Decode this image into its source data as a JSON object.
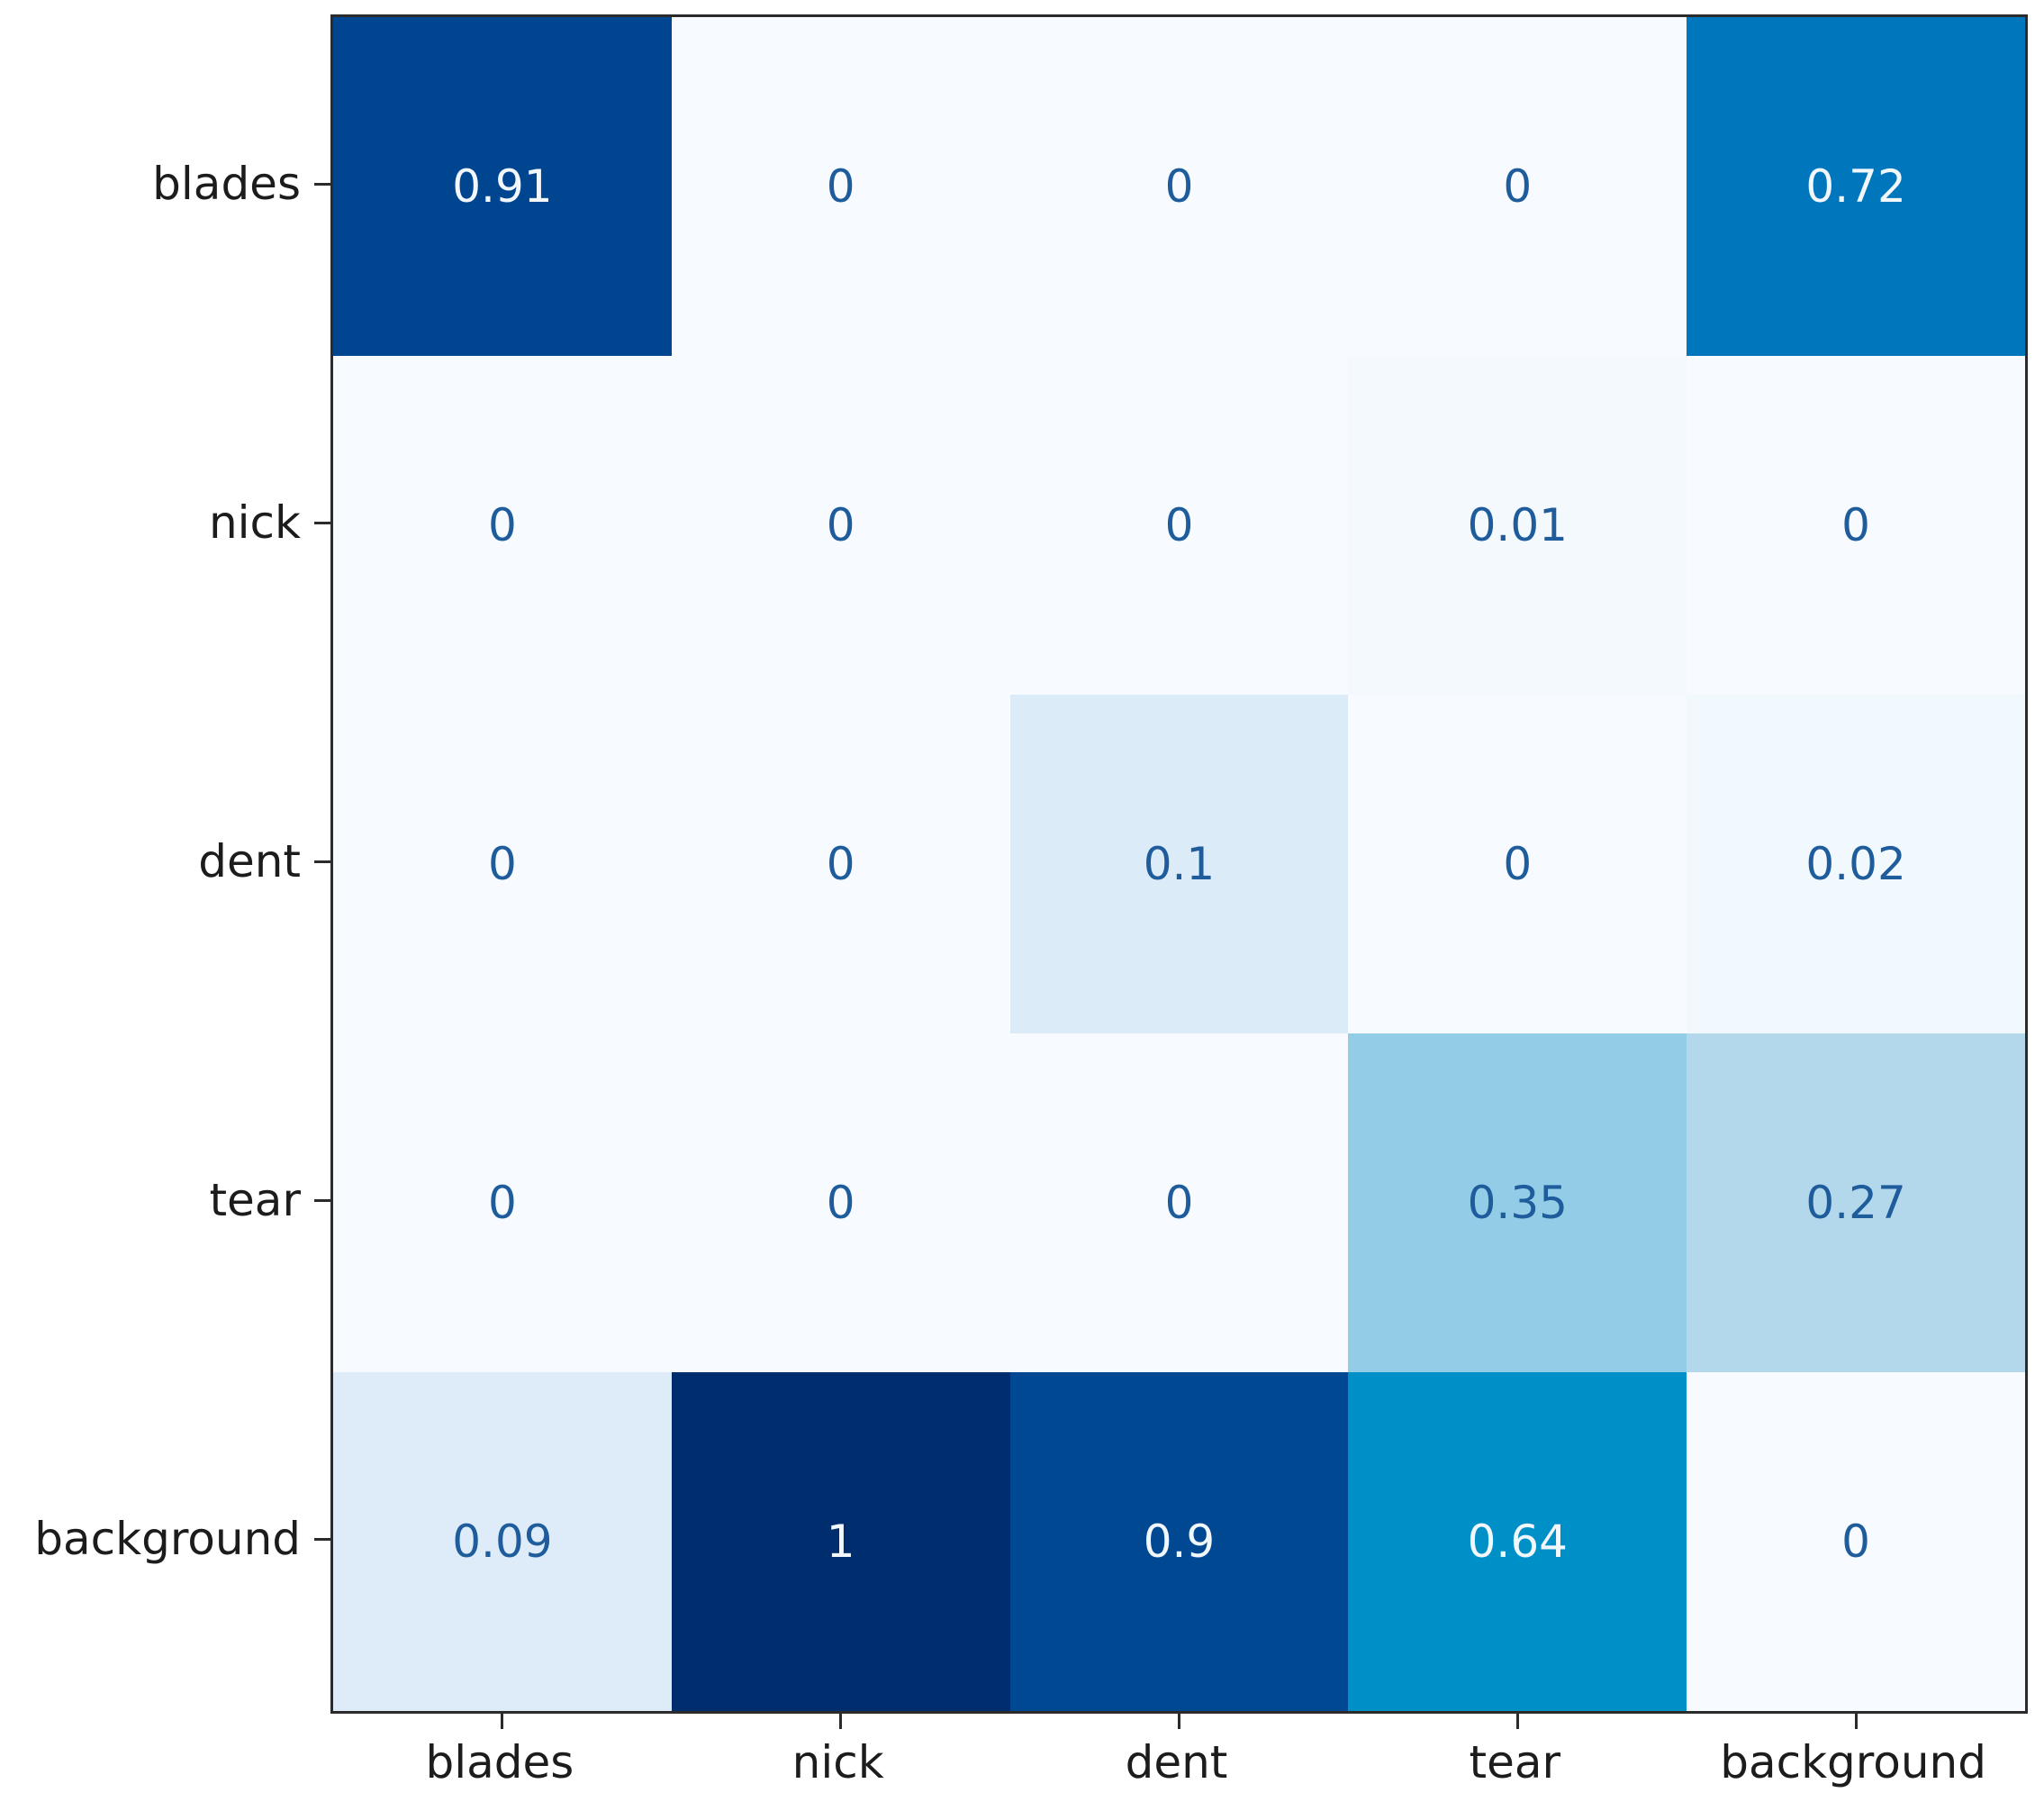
{
  "figure": {
    "background": "#ffffff",
    "spine_color": "#2b2b2b",
    "tick_color": "#2b2b2b",
    "axis_label_color": "#1c1c1c"
  },
  "chart_data": {
    "type": "heatmap",
    "title": "",
    "xlabel": "",
    "ylabel": "",
    "x_labels": [
      "blades",
      "nick",
      "dent",
      "tear",
      "background"
    ],
    "y_labels": [
      "blades",
      "nick",
      "dent",
      "tear",
      "background"
    ],
    "values": [
      [
        0.91,
        0,
        0,
        0,
        0.72
      ],
      [
        0,
        0,
        0,
        0.01,
        0
      ],
      [
        0,
        0,
        0.1,
        0,
        0.02
      ],
      [
        0,
        0,
        0,
        0.35,
        0.27
      ],
      [
        0.09,
        1,
        0.9,
        0.64,
        0
      ]
    ],
    "cell_labels": [
      [
        "0.91",
        "0",
        "0",
        "0",
        "0.72"
      ],
      [
        "0",
        "0",
        "0",
        "0.01",
        "0"
      ],
      [
        "0",
        "0",
        "0.1",
        "0",
        "0.02"
      ],
      [
        "0",
        "0",
        "0",
        "0.35",
        "0.27"
      ],
      [
        "0.09",
        "1",
        "0.9",
        "0.64",
        "0"
      ]
    ],
    "value_range": [
      0,
      1
    ],
    "grid": false,
    "legend": "none",
    "colormap": {
      "name": "blues",
      "stops": [
        [
          0.0,
          "#f7fbff"
        ],
        [
          0.09,
          "#deecf9"
        ],
        [
          0.27,
          "#b3d8ec"
        ],
        [
          0.35,
          "#93cce6"
        ],
        [
          0.64,
          "#0090c8"
        ],
        [
          0.72,
          "#0076bc"
        ],
        [
          0.91,
          "#00458f"
        ],
        [
          1.0,
          "#002d6e"
        ]
      ]
    },
    "cell_text_dark": "#1e5c9b",
    "cell_text_light": "#f2f7fc",
    "text_switch_threshold": 0.5
  }
}
